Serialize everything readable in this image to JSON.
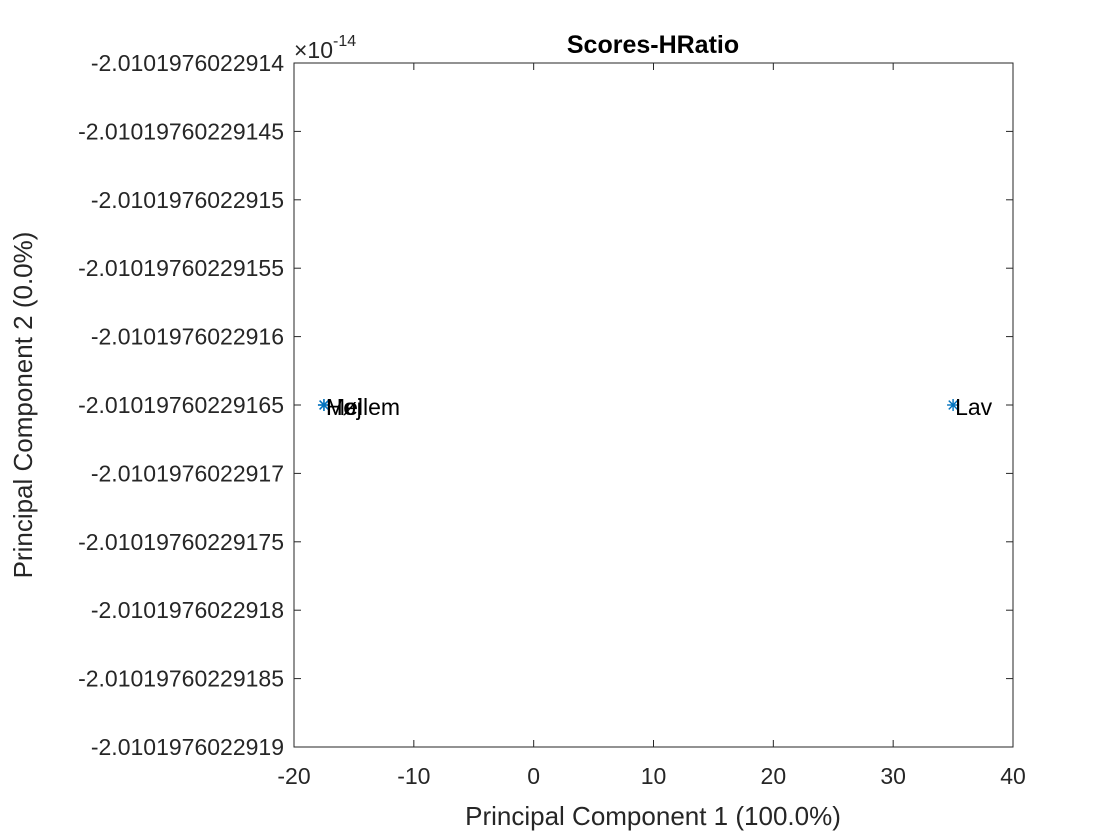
{
  "chart_data": {
    "type": "scatter",
    "title": "Scores-HRatio",
    "xlabel": "Principal Component 1 (100.0%)",
    "ylabel": "Principal Component 2 (0.0%)",
    "xlim": [
      -20,
      40
    ],
    "x_ticks": [
      -20,
      -10,
      0,
      10,
      20,
      30,
      40
    ],
    "x_tick_labels": [
      "-20",
      "-10",
      "0",
      "10",
      "20",
      "30",
      "40"
    ],
    "ylim": [
      -2.0101976022919,
      -2.0101976022914
    ],
    "y_tick_labels": [
      "-2.0101976022914",
      "-2.01019760229145",
      "-2.0101976022915",
      "-2.01019760229155",
      "-2.0101976022916",
      "-2.01019760229165",
      "-2.0101976022917",
      "-2.01019760229175",
      "-2.0101976022918",
      "-2.01019760229185",
      "-2.0101976022919"
    ],
    "y_exponent_base": "×10",
    "y_exponent": "-14",
    "marker": "*",
    "marker_color": "#0072BD",
    "points": [
      {
        "label": "Høj",
        "x": -17.5,
        "y": -2.01019760229165
      },
      {
        "label": "Mellem",
        "x": -17.5,
        "y": -2.01019760229165
      },
      {
        "label": "Lav",
        "x": 35,
        "y": -2.01019760229165
      }
    ],
    "grid": false,
    "box": true
  }
}
